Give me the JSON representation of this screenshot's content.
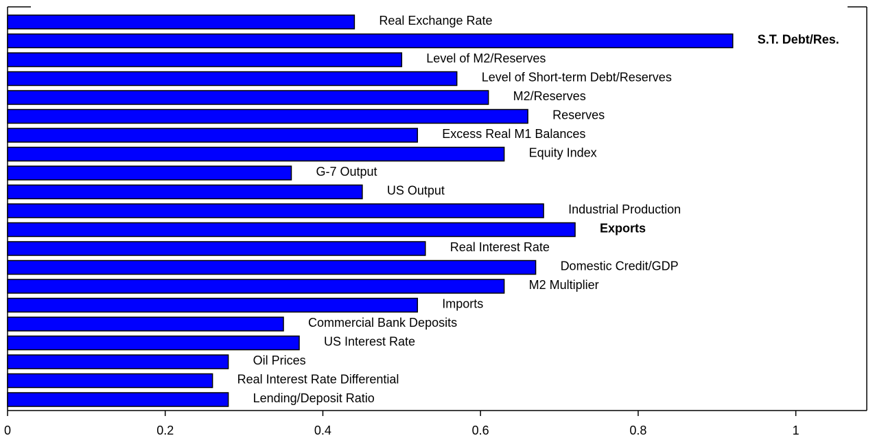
{
  "chart_data": {
    "type": "barh",
    "categories": [
      "Real Exchange Rate",
      "S.T. Debt/Res.",
      "Level of M2/Reserves",
      "Level of Short-term Debt/Reserves",
      "M2/Reserves",
      "Reserves",
      "Excess Real M1 Balances",
      "Equity Index",
      "G-7 Output",
      "US Output",
      "Industrial Production",
      "Exports",
      "Real Interest Rate",
      "Domestic Credit/GDP",
      "M2 Multiplier",
      "Imports",
      "Commercial Bank Deposits",
      "US Interest Rate",
      "Oil Prices",
      "Real Interest Rate Differential",
      "Lending/Deposit Ratio"
    ],
    "values": [
      0.44,
      0.92,
      0.5,
      0.57,
      0.61,
      0.66,
      0.52,
      0.63,
      0.36,
      0.45,
      0.68,
      0.72,
      0.53,
      0.67,
      0.63,
      0.52,
      0.35,
      0.37,
      0.28,
      0.26,
      0.28
    ],
    "bold": [
      false,
      true,
      false,
      false,
      false,
      false,
      false,
      false,
      false,
      false,
      false,
      true,
      false,
      false,
      false,
      false,
      false,
      false,
      false,
      false,
      false
    ],
    "color": "#0000ff",
    "xlim": [
      0,
      1.09
    ],
    "xticks": [
      0,
      0.2,
      0.4,
      0.6,
      0.8,
      1
    ],
    "grid": false
  }
}
